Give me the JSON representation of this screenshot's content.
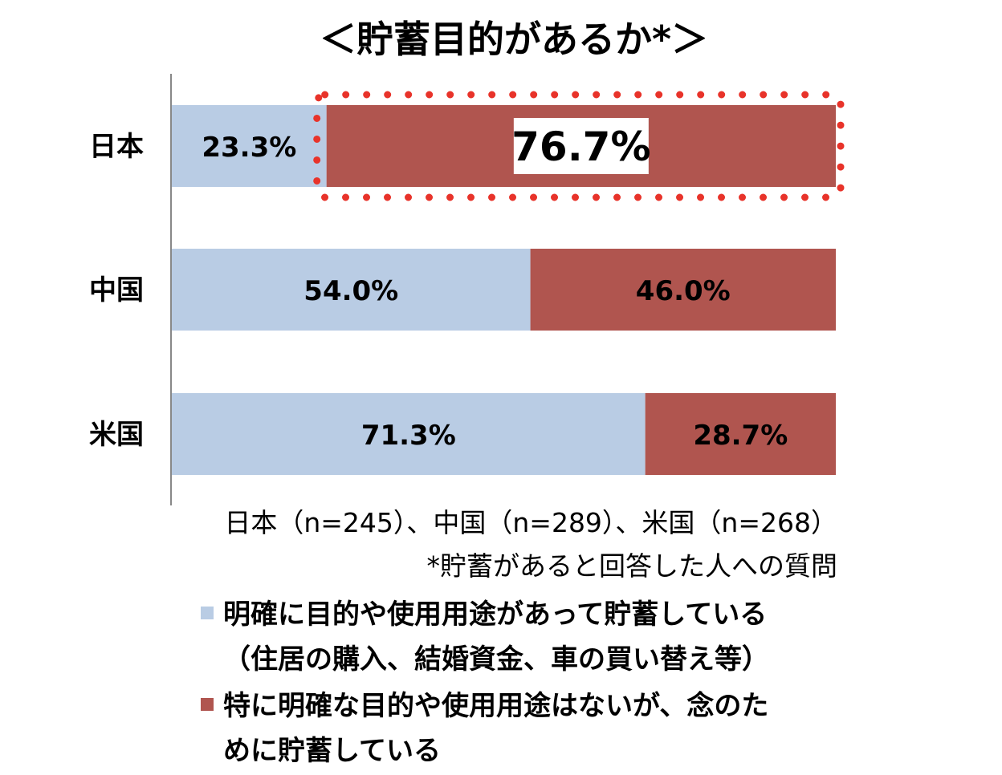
{
  "chart_data": {
    "type": "bar",
    "stacked": true,
    "orientation": "horizontal",
    "title": "＜貯蓄目的があるか*＞",
    "categories": [
      "日本",
      "中国",
      "米国"
    ],
    "series": [
      {
        "name": "明確に目的や使用用途があって貯蓄している（住居の購入、結婚資金、車の買い替え等）",
        "name_lines": [
          "明確に目的や使用用途があって貯蓄している",
          "（住居の購入、結婚資金、車の買い替え等）"
        ],
        "color": "#b9cce4",
        "values": [
          23.3,
          54.0,
          71.3
        ],
        "labels": [
          "23.3%",
          "54.0%",
          "71.3%"
        ]
      },
      {
        "name": "特に明確な目的や使用用途はないが、念のために貯蓄している",
        "name_lines": [
          "特に明確な目的や使用用途はないが、念のた",
          "めに貯蓄している"
        ],
        "color": "#b0554f",
        "values": [
          76.7,
          46.0,
          28.7
        ],
        "labels": [
          "76.7%",
          "46.0%",
          "28.7%"
        ]
      }
    ],
    "xlim": [
      0,
      100
    ],
    "highlight": {
      "category": "日本",
      "series": 1,
      "border_color": "#e8332a"
    },
    "notes": [
      "日本（n=245）、中国（n=289）、米国（n=268）",
      "*貯蓄があると回答した人への質問"
    ],
    "legend_position": "bottom-left",
    "grid": false
  }
}
